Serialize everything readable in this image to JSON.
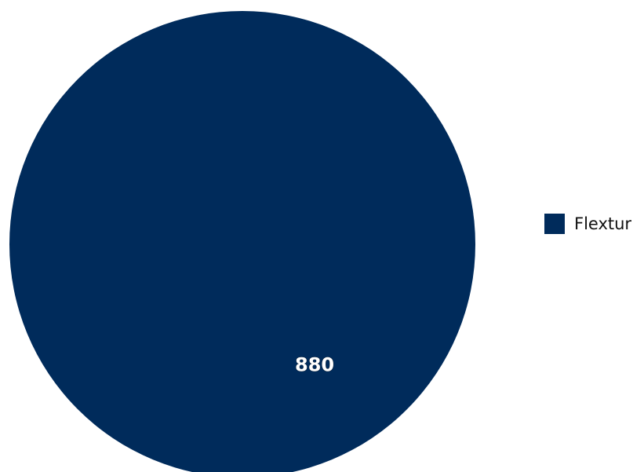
{
  "chart_data": {
    "type": "pie",
    "title": "",
    "categories": [
      "Flextur"
    ],
    "values": [
      880
    ],
    "data_labels": [
      "880"
    ],
    "colors": [
      "#002b5b"
    ],
    "legend_position": "right"
  },
  "legend": {
    "items": [
      {
        "label": "Flextur",
        "color": "#002b5b"
      }
    ]
  }
}
